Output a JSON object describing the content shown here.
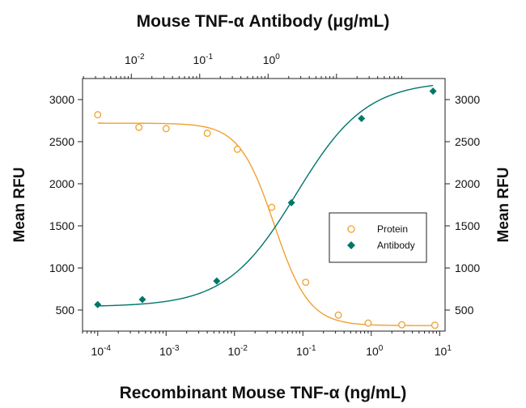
{
  "chart_data": {
    "type": "scatter",
    "title": "Mouse TNF-α Antibody (μg/mL)",
    "xlabel": "Recombinant Mouse TNF-α (ng/mL)",
    "ylabel": "Mean RFU",
    "ylabel_right": "Mean RFU",
    "x_scale": "log",
    "xlim": [
      6e-05,
      12
    ],
    "ylim": [
      250,
      3250
    ],
    "x_ticks": [
      {
        "value": 0.0001,
        "base": "10",
        "exp": "-4"
      },
      {
        "value": 0.001,
        "base": "10",
        "exp": "-3"
      },
      {
        "value": 0.01,
        "base": "10",
        "exp": "-2"
      },
      {
        "value": 0.1,
        "base": "10",
        "exp": "-1"
      },
      {
        "value": 1,
        "base": "10",
        "exp": "0"
      },
      {
        "value": 10,
        "base": "10",
        "exp": "1"
      }
    ],
    "top_scale": "log",
    "top_ticks": [
      {
        "value": 0.01,
        "base": "10",
        "exp": "-2"
      },
      {
        "value": 0.1,
        "base": "10",
        "exp": "-1"
      },
      {
        "value": 1,
        "base": "10",
        "exp": "0"
      }
    ],
    "y_ticks": [
      500,
      1000,
      1500,
      2000,
      2500,
      3000
    ],
    "legend_position": "right-middle",
    "grid": false,
    "series": [
      {
        "name": "Protein",
        "marker": "open-circle",
        "color": "#F0A030",
        "points": [
          {
            "x": 0.0001,
            "y": 2820
          },
          {
            "x": 0.0004,
            "y": 2670
          },
          {
            "x": 0.001,
            "y": 2655
          },
          {
            "x": 0.004,
            "y": 2600
          },
          {
            "x": 0.011,
            "y": 2410
          },
          {
            "x": 0.035,
            "y": 1720
          },
          {
            "x": 0.11,
            "y": 830
          },
          {
            "x": 0.33,
            "y": 440
          },
          {
            "x": 0.9,
            "y": 345
          },
          {
            "x": 2.8,
            "y": 325
          },
          {
            "x": 8.5,
            "y": 320
          }
        ],
        "curve": {
          "bottom": 315,
          "top": 2720,
          "ec50": 0.038,
          "hill": 1.7
        }
      },
      {
        "name": "Antibody",
        "marker": "filled-diamond",
        "color": "#00766B",
        "points": [
          {
            "x": 0.0001,
            "y": 565
          },
          {
            "x": 0.00045,
            "y": 625
          },
          {
            "x": 0.0055,
            "y": 845
          },
          {
            "x": 0.068,
            "y": 1775
          },
          {
            "x": 0.72,
            "y": 2775
          },
          {
            "x": 8.0,
            "y": 3100
          }
        ],
        "curve": {
          "bottom": 540,
          "top": 3220,
          "ec50": 0.08,
          "hill": 0.85
        }
      }
    ]
  }
}
